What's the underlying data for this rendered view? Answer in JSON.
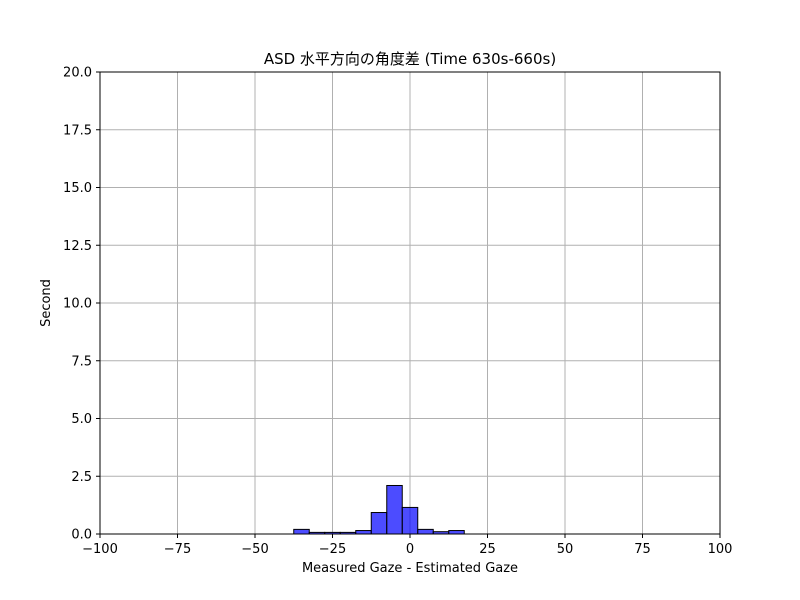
{
  "chart_data": {
    "type": "bar",
    "title": "ASD 水平方向の角度差 (Time 630s-660s)",
    "xlabel": "Measured Gaze - Estimated Gaze",
    "ylabel": "Second",
    "xlim": [
      -100,
      100
    ],
    "ylim": [
      0,
      20
    ],
    "grid": true,
    "xticks": [
      -100,
      -75,
      -50,
      -25,
      0,
      25,
      50,
      75,
      100
    ],
    "xtick_labels": [
      "−100",
      "−75",
      "−50",
      "−25",
      "0",
      "25",
      "50",
      "75",
      "100"
    ],
    "yticks": [
      0,
      2.5,
      5,
      7.5,
      10,
      12.5,
      15,
      17.5,
      20
    ],
    "ytick_labels": [
      "0.0",
      "2.5",
      "5.0",
      "7.5",
      "10.0",
      "12.5",
      "15.0",
      "17.5",
      "20.0"
    ],
    "bar_color": "#0000ff",
    "bins": [
      {
        "x0": -37.5,
        "x1": -32.5,
        "value": 0.2
      },
      {
        "x0": -32.5,
        "x1": -27.5,
        "value": 0.07
      },
      {
        "x0": -27.5,
        "x1": -22.5,
        "value": 0.07
      },
      {
        "x0": -22.5,
        "x1": -17.5,
        "value": 0.07
      },
      {
        "x0": -17.5,
        "x1": -12.5,
        "value": 0.15
      },
      {
        "x0": -12.5,
        "x1": -7.5,
        "value": 0.93
      },
      {
        "x0": -7.5,
        "x1": -2.5,
        "value": 2.1
      },
      {
        "x0": -2.5,
        "x1": 2.5,
        "value": 1.15
      },
      {
        "x0": 2.5,
        "x1": 7.5,
        "value": 0.2
      },
      {
        "x0": 7.5,
        "x1": 12.5,
        "value": 0.1
      },
      {
        "x0": 12.5,
        "x1": 17.5,
        "value": 0.15
      }
    ]
  }
}
